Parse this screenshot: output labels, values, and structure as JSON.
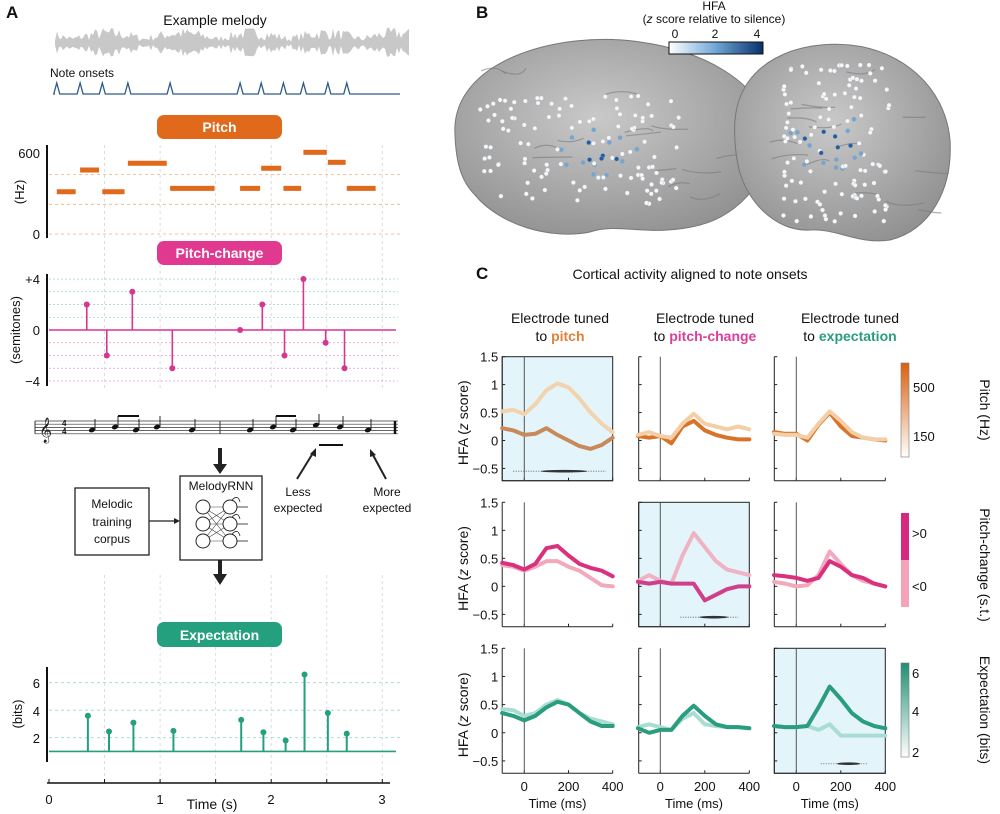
{
  "panel_labels": {
    "a": "A",
    "b": "B",
    "c": "C"
  },
  "panel_a": {
    "title": "Example melody",
    "onsets_label": "Note onsets",
    "pill_pitch": "Pitch",
    "pill_pitch_change": "Pitch-change",
    "pill_expectation": "Expectation",
    "pitch_ylabel": "(Hz)",
    "pitch_ticks": [
      "600",
      "0"
    ],
    "pc_ylabel": "(semitones)",
    "pc_ticks": [
      "+4",
      "0",
      "−4"
    ],
    "exp_ylabel": "(bits)",
    "exp_ticks": [
      "6",
      "4",
      "2"
    ],
    "time_ticks": [
      "0",
      "1",
      "2",
      "3"
    ],
    "time_label": "Time (s)",
    "model_box": "MelodyRNN",
    "corpus_box": [
      "Melodic",
      "training",
      "corpus"
    ],
    "less_expected": [
      "Less",
      "expected"
    ],
    "more_expected": [
      "More",
      "expected"
    ],
    "time_signature": [
      "4",
      "4"
    ]
  },
  "panel_b": {
    "colorbar_title": "HFA",
    "colorbar_subtitle_pre": "(",
    "colorbar_subtitle_z": "z",
    "colorbar_subtitle_post": " score relative to silence)",
    "colorbar_ticks": [
      "0",
      "2",
      "4"
    ]
  },
  "panel_c": {
    "title": "Cortical activity aligned to note onsets",
    "col_header_top": "Electrode tuned",
    "col_headers": [
      {
        "prefix": "to ",
        "word": "pitch",
        "color": "#e0823a"
      },
      {
        "prefix": "to ",
        "word": "pitch-change",
        "color": "#d9409a"
      },
      {
        "prefix": "to ",
        "word": "expectation",
        "color": "#2a9d7f"
      }
    ],
    "ylabel_pre": "HFA (",
    "ylabel_z": "z",
    "ylabel_post": " score)",
    "yticks": [
      "1.5",
      "1",
      "0.5",
      "0",
      "−0.5"
    ],
    "xticks": [
      "0",
      "200",
      "400"
    ],
    "xlabel": "Time (ms)",
    "colorbars": [
      {
        "title": "Pitch (Hz)",
        "ticks": [
          "500",
          "150"
        ]
      },
      {
        "title": "Pitch-change (s.t.)",
        "ticks": [
          ">0",
          "<0"
        ]
      },
      {
        "title": "Expectation (bits)",
        "ticks": [
          "6",
          "4",
          "2"
        ]
      }
    ]
  },
  "colors": {
    "pitch": "#e0691b",
    "pitch_change": "#e0398f",
    "expectation": "#24a07f",
    "highlight_bg": "#e3f4fb",
    "onsets": "#2d5a8a"
  },
  "chart_data": [
    {
      "type": "bar",
      "title": "Pitch",
      "ylabel": "(Hz)",
      "ylim": [
        0,
        600
      ],
      "xlim": [
        0,
        3.1
      ],
      "notes": [
        {
          "start": 0.07,
          "end": 0.24,
          "hz": 313
        },
        {
          "start": 0.28,
          "end": 0.45,
          "hz": 474
        },
        {
          "start": 0.48,
          "end": 0.68,
          "hz": 313
        },
        {
          "start": 0.71,
          "end": 1.06,
          "hz": 524
        },
        {
          "start": 1.09,
          "end": 1.49,
          "hz": 338
        },
        {
          "start": 1.72,
          "end": 1.9,
          "hz": 338
        },
        {
          "start": 1.91,
          "end": 2.09,
          "hz": 487
        },
        {
          "start": 2.11,
          "end": 2.27,
          "hz": 338
        },
        {
          "start": 2.29,
          "end": 2.5,
          "hz": 605
        },
        {
          "start": 2.51,
          "end": 2.67,
          "hz": 531
        },
        {
          "start": 2.68,
          "end": 2.94,
          "hz": 338
        }
      ],
      "gridlines": [
        0,
        220,
        440
      ]
    },
    {
      "type": "scatter",
      "subtype": "stem",
      "title": "Pitch-change",
      "ylabel": "(semitones)",
      "ylim": [
        -4,
        4
      ],
      "x": [
        0.34,
        0.52,
        0.75,
        1.11,
        1.72,
        1.92,
        2.12,
        2.29,
        2.49,
        2.66
      ],
      "y": [
        2,
        -2,
        3,
        -3,
        0,
        2,
        -2,
        4,
        -1,
        -3
      ]
    },
    {
      "type": "scatter",
      "subtype": "stem",
      "title": "Expectation",
      "ylabel": "(bits)",
      "xlabel": "Time (s)",
      "ylim": [
        1,
        7
      ],
      "xlim": [
        0,
        3.1
      ],
      "baseline": 1,
      "x": [
        0.35,
        0.54,
        0.76,
        1.12,
        1.73,
        1.93,
        2.13,
        2.3,
        2.51,
        2.68
      ],
      "y": [
        3.6,
        2.45,
        3.1,
        2.5,
        3.3,
        2.4,
        1.8,
        6.6,
        3.8,
        2.3
      ]
    },
    {
      "type": "line",
      "title": "Cortical activity aligned to note onsets",
      "xlabel": "Time (ms)",
      "ylabel": "HFA (z score)",
      "xlim": [
        -100,
        400
      ],
      "ylim": [
        -0.72,
        1.5
      ],
      "x": [
        -100,
        -50,
        0,
        50,
        100,
        150,
        200,
        250,
        300,
        350,
        400
      ],
      "grid": [
        {
          "row": "pitch",
          "col": "pitch",
          "highlighted": true,
          "sig": [
            -50,
            370
          ],
          "series": [
            {
              "name": "high",
              "color": "#c98a5a",
              "values": [
                0.22,
                0.18,
                0.1,
                0.12,
                0.22,
                0.1,
                0.0,
                -0.1,
                -0.15,
                -0.08,
                0.05
              ]
            },
            {
              "name": "low",
              "color": "#f3d2ae",
              "values": [
                0.52,
                0.55,
                0.47,
                0.65,
                0.9,
                1.02,
                0.95,
                0.75,
                0.5,
                0.3,
                0.15
              ]
            }
          ]
        },
        {
          "row": "pitch",
          "col": "pitch-change",
          "highlighted": false,
          "series": [
            {
              "name": "high",
              "color": "#d9732a",
              "values": [
                0.08,
                0.05,
                0.08,
                -0.05,
                0.25,
                0.35,
                0.18,
                0.1,
                0.05,
                0.02,
                0.02
              ]
            },
            {
              "name": "low",
              "color": "#f3cfa8",
              "values": [
                0.1,
                0.15,
                0.08,
                0.05,
                0.3,
                0.48,
                0.3,
                0.25,
                0.2,
                0.25,
                0.2
              ]
            }
          ]
        },
        {
          "row": "pitch",
          "col": "expectation",
          "highlighted": false,
          "series": [
            {
              "name": "high",
              "color": "#d9732a",
              "values": [
                0.15,
                0.12,
                0.12,
                0.0,
                0.28,
                0.5,
                0.25,
                0.08,
                0.05,
                0.02,
                0.0
              ]
            },
            {
              "name": "low",
              "color": "#f3cfa8",
              "values": [
                0.12,
                0.1,
                0.1,
                0.05,
                0.3,
                0.52,
                0.35,
                0.15,
                0.05,
                0.02,
                0.02
              ]
            }
          ]
        },
        {
          "row": "pitch-change",
          "col": "pitch",
          "highlighted": false,
          "series": [
            {
              "name": "<0",
              "color": "#f2a9bb",
              "values": [
                0.38,
                0.35,
                0.28,
                0.35,
                0.45,
                0.45,
                0.35,
                0.28,
                0.15,
                0.02,
                0.0
              ]
            },
            {
              "name": ">0",
              "color": "#d9317e",
              "values": [
                0.42,
                0.38,
                0.3,
                0.4,
                0.68,
                0.72,
                0.55,
                0.4,
                0.33,
                0.28,
                0.18
              ]
            }
          ]
        },
        {
          "row": "pitch-change",
          "col": "pitch-change",
          "highlighted": true,
          "sig": [
            90,
            350
          ],
          "series": [
            {
              "name": "<0",
              "color": "#efb3c4",
              "values": [
                0.1,
                0.2,
                0.1,
                0.05,
                0.55,
                0.95,
                0.7,
                0.45,
                0.3,
                0.25,
                0.2
              ]
            },
            {
              "name": ">0",
              "color": "#cf3f8a",
              "values": [
                0.08,
                0.05,
                0.08,
                0.05,
                0.05,
                0.05,
                -0.25,
                -0.15,
                -0.05,
                0.0,
                0.0
              ]
            }
          ]
        },
        {
          "row": "pitch-change",
          "col": "expectation",
          "highlighted": false,
          "series": [
            {
              "name": "<0",
              "color": "#f2a9bb",
              "values": [
                0.08,
                0.05,
                0.0,
                0.02,
                0.2,
                0.62,
                0.4,
                0.2,
                0.1,
                0.05,
                0.0
              ]
            },
            {
              "name": ">0",
              "color": "#d9317e",
              "values": [
                0.2,
                0.18,
                0.15,
                0.1,
                0.15,
                0.45,
                0.35,
                0.2,
                0.15,
                0.05,
                0.0
              ]
            }
          ]
        },
        {
          "row": "expectation",
          "col": "pitch",
          "highlighted": false,
          "series": [
            {
              "name": "low",
              "color": "#a9ddd3",
              "values": [
                0.42,
                0.4,
                0.3,
                0.35,
                0.5,
                0.58,
                0.5,
                0.35,
                0.25,
                0.2,
                0.15
              ]
            },
            {
              "name": "high",
              "color": "#2a9d7f",
              "values": [
                0.35,
                0.3,
                0.22,
                0.3,
                0.45,
                0.55,
                0.5,
                0.35,
                0.2,
                0.12,
                0.12
              ]
            }
          ]
        },
        {
          "row": "expectation",
          "col": "pitch-change",
          "highlighted": false,
          "series": [
            {
              "name": "low",
              "color": "#a9ddd3",
              "values": [
                0.1,
                0.15,
                0.1,
                0.05,
                0.25,
                0.35,
                0.15,
                0.12,
                0.1,
                0.1,
                0.08
              ]
            },
            {
              "name": "high",
              "color": "#2a9d7f",
              "values": [
                0.08,
                0.0,
                0.05,
                0.05,
                0.3,
                0.48,
                0.3,
                0.15,
                0.1,
                0.1,
                0.08
              ]
            }
          ]
        },
        {
          "row": "expectation",
          "col": "expectation",
          "highlighted": true,
          "sig": [
            110,
            320
          ],
          "series": [
            {
              "name": "low",
              "color": "#a9ddd3",
              "values": [
                0.12,
                0.1,
                0.1,
                0.12,
                0.05,
                0.15,
                -0.05,
                -0.05,
                -0.05,
                -0.05,
                -0.05
              ]
            },
            {
              "name": "high",
              "color": "#2a9d7f",
              "values": [
                0.12,
                0.1,
                0.1,
                0.12,
                0.45,
                0.82,
                0.6,
                0.35,
                0.2,
                0.12,
                0.08
              ]
            }
          ]
        }
      ]
    }
  ]
}
